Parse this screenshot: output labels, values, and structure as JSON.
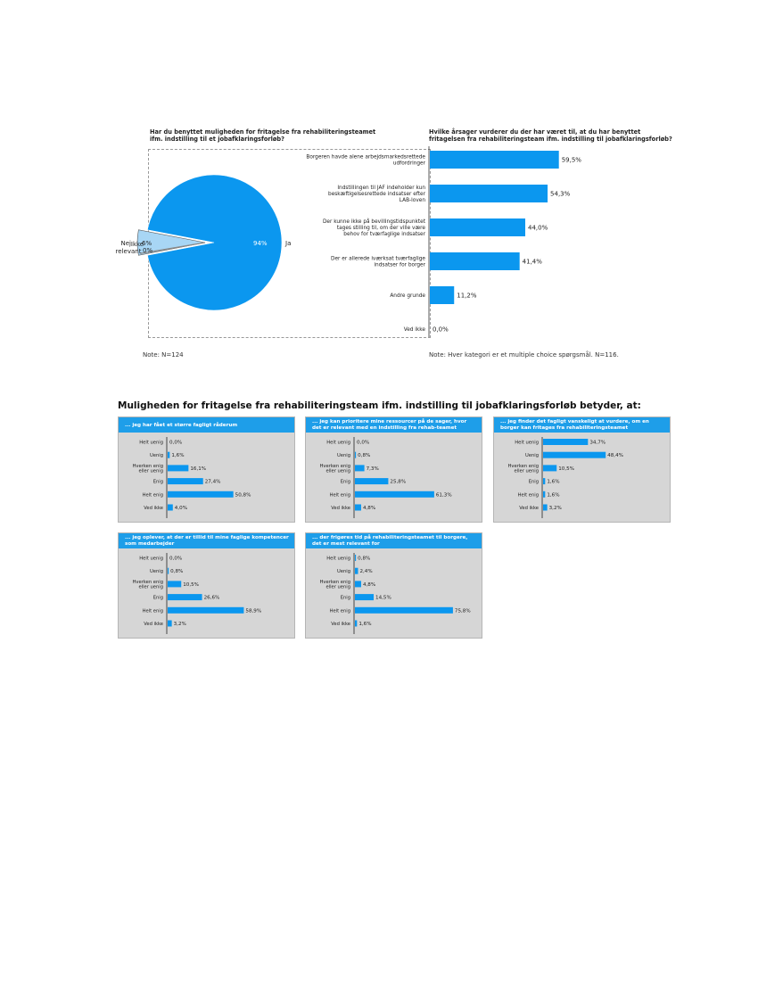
{
  "colors": {
    "bar": "#0b97ef",
    "pie_ja": "#0b97ef",
    "pie_nej": "#a8d6f5",
    "pie_ikke": "#8a8a8a",
    "panel_head": "#1e9ee9",
    "panel_bg": "#d6d6d6"
  },
  "pie_section": {
    "title": "Har du benyttet muligheden for fritagelse fra rehabiliteringsteamet ifm. indstilling til et jobafklaringsforløb?",
    "note": "Note: N=124"
  },
  "bar_section": {
    "title": "Hvilke årsager vurderer du der har været til, at du har benyttet fritagelsen fra rehabiliteringsteam ifm. indstilling til jobafklaringsforløb?",
    "note": "Note: Hver kategori er et multiple choice spørgsmål. N=116."
  },
  "main_heading": "Muligheden for fritagelse fra rehabiliteringsteam ifm. indstilling til jobafklaringsforløb betyder, at:",
  "chart_data": [
    {
      "type": "pie",
      "title": "Har du benyttet muligheden for fritagelse fra rehabiliteringsteamet ifm. indstilling til et jobafklaringsforløb?",
      "slices": [
        {
          "name": "Ja",
          "value": 94,
          "label": "94%"
        },
        {
          "name": "Nej",
          "value": 6,
          "label": "6%"
        },
        {
          "name": "Ikke relevant",
          "value": 0,
          "label": "0%"
        }
      ]
    },
    {
      "type": "bar",
      "orientation": "horizontal",
      "title": "Hvilke årsager vurderer du der har været til, at du har benyttet fritagelsen fra rehabiliteringsteam ifm. indstilling til jobafklaringsforløb?",
      "categories": [
        "Borgeren havde alene arbejdsmarkedsrettede udfordringer",
        "Indstillingen til JAF indeholder kun beskæftigelsesrettede indsatser efter LAB-loven",
        "Der kunne ikke på bevillingstidspunktet tages stilling til, om der ville være behov for tværfaglige indsatser",
        "Der er allerede iværksat tværfaglige indsatser for borger",
        "Andre grunde",
        "Ved ikke"
      ],
      "values": [
        59.5,
        54.3,
        44.0,
        41.4,
        11.2,
        0.0
      ],
      "labels": [
        "59,5%",
        "54,3%",
        "44,0%",
        "41,4%",
        "11,2%",
        "0,0%"
      ],
      "xlim": [
        0,
        100
      ]
    },
    {
      "type": "bar",
      "orientation": "horizontal",
      "title": "... jeg har fået et større fagligt råderum",
      "categories": [
        "Helt uenig",
        "Uenig",
        "Hverken enig eller uenig",
        "Enig",
        "Helt enig",
        "Ved ikke"
      ],
      "values": [
        0.0,
        1.6,
        16.1,
        27.4,
        50.8,
        4.0
      ],
      "labels": [
        "0,0%",
        "1,6%",
        "16,1%",
        "27,4%",
        "50,8%",
        "4,0%"
      ],
      "xlim": [
        0,
        100
      ]
    },
    {
      "type": "bar",
      "orientation": "horizontal",
      "title": "... jeg kan prioritere mine ressourcer på de sager, hvor det er relevant med en indstilling fra rehab-teamet",
      "categories": [
        "Helt uenig",
        "Uenig",
        "Hverken enig eller uenig",
        "Enig",
        "Helt enig",
        "Ved ikke"
      ],
      "values": [
        0.0,
        0.8,
        7.3,
        25.8,
        61.3,
        4.8
      ],
      "labels": [
        "0,0%",
        "0,8%",
        "7,3%",
        "25,8%",
        "61,3%",
        "4,8%"
      ],
      "xlim": [
        0,
        100
      ]
    },
    {
      "type": "bar",
      "orientation": "horizontal",
      "title": "... jeg finder det fagligt vanskeligt at vurdere, om en borger kan fritages fra rehabiliteringsteamet",
      "categories": [
        "Helt uenig",
        "Uenig",
        "Hverken enig eller uenig",
        "Enig",
        "Helt enig",
        "Ved ikke"
      ],
      "values": [
        34.7,
        48.4,
        10.5,
        1.6,
        1.6,
        3.2
      ],
      "labels": [
        "34,7%",
        "48,4%",
        "10,5%",
        "1,6%",
        "1,6%",
        "3,2%"
      ],
      "xlim": [
        0,
        100
      ]
    },
    {
      "type": "bar",
      "orientation": "horizontal",
      "title": "... jeg oplever, at der er tillid til mine faglige kompetencer som medarbejder",
      "categories": [
        "Helt uenig",
        "Uenig",
        "Hverken enig eller uenig",
        "Enig",
        "Helt enig",
        "Ved ikke"
      ],
      "values": [
        0.0,
        0.8,
        10.5,
        26.6,
        58.9,
        3.2
      ],
      "labels": [
        "0,0%",
        "0,8%",
        "10,5%",
        "26,6%",
        "58,9%",
        "3,2%"
      ],
      "xlim": [
        0,
        100
      ]
    },
    {
      "type": "bar",
      "orientation": "horizontal",
      "title": "... der frigøres tid på rehabiliteringsteamet til borgere, det er mest relevant for",
      "categories": [
        "Helt uenig",
        "Uenig",
        "Hverken enig eller uenig",
        "Enig",
        "Helt enig",
        "Ved ikke"
      ],
      "values": [
        0.8,
        2.4,
        4.8,
        14.5,
        75.8,
        1.6
      ],
      "labels": [
        "0,8%",
        "2,4%",
        "4,8%",
        "14,5%",
        "75,8%",
        "1,6%"
      ],
      "xlim": [
        0,
        100
      ]
    }
  ]
}
